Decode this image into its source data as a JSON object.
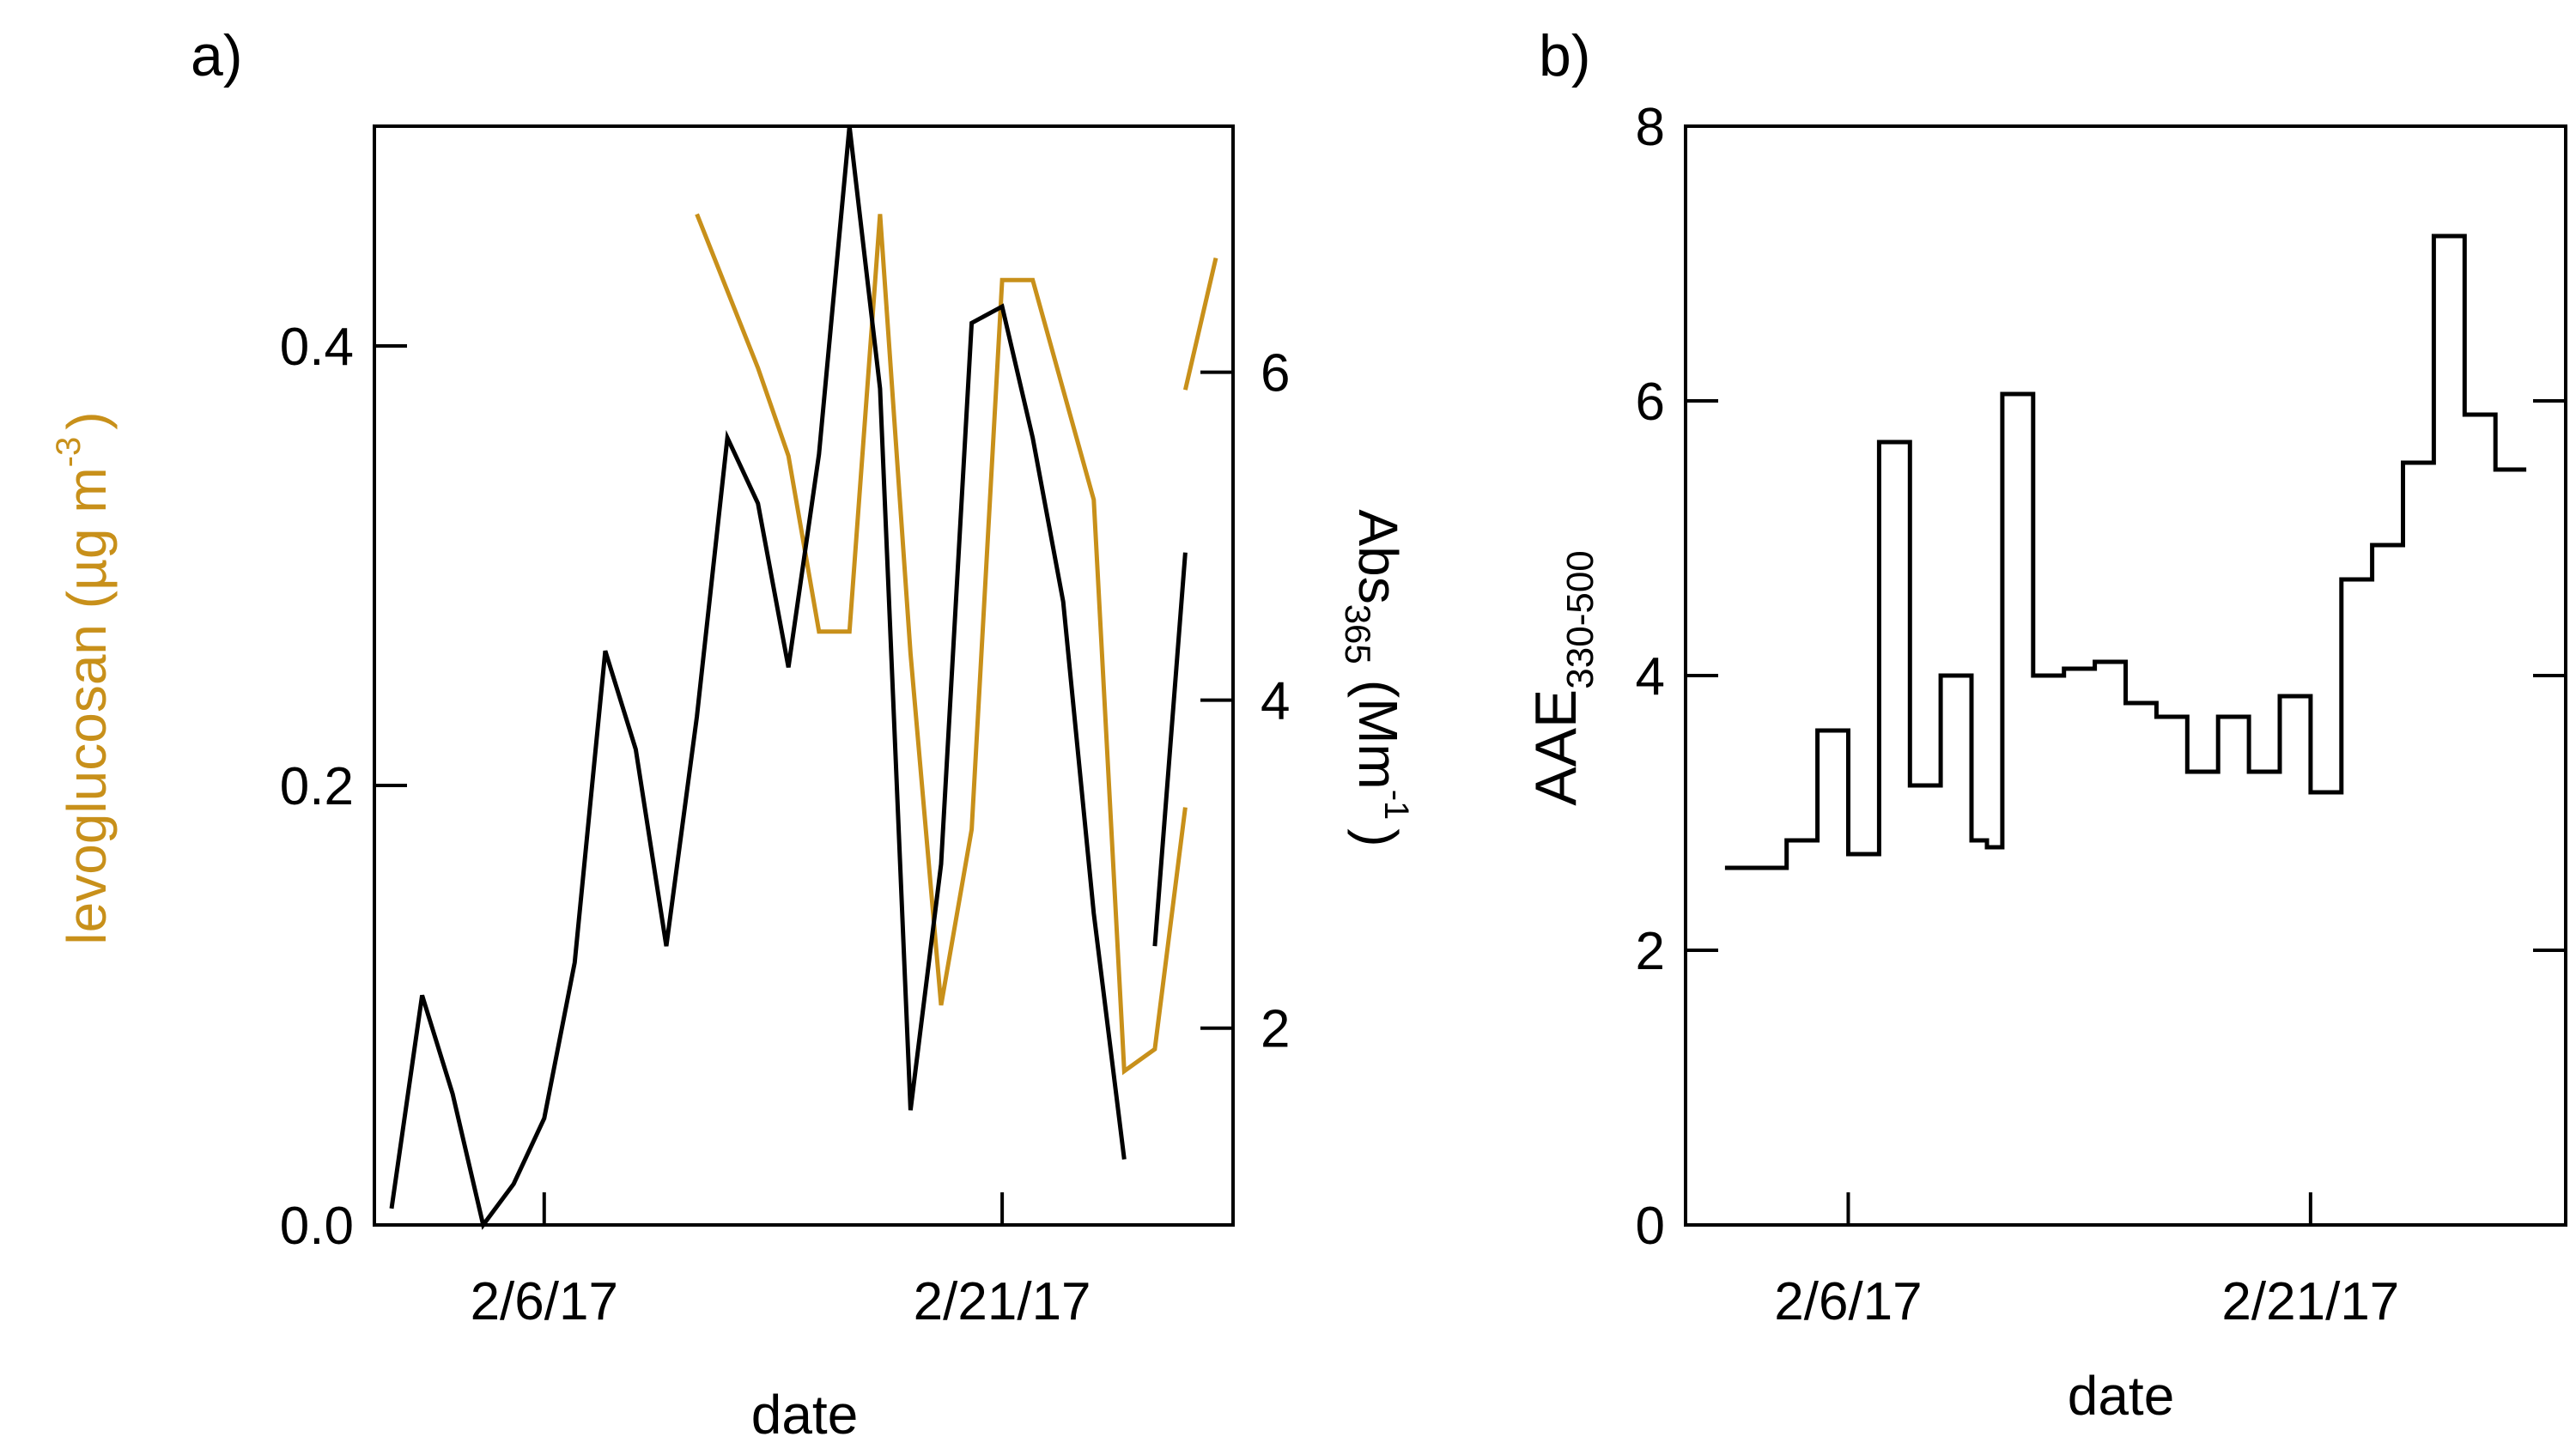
{
  "chart_data": [
    {
      "panel": "a)",
      "type": "line",
      "xlabel": "date",
      "x_tick_labels": [
        "2/6/17",
        "2/21/17"
      ],
      "x_tick_days": [
        6,
        21
      ],
      "xlim": [
        1,
        28
      ],
      "left_axis": {
        "label": "levoglucosan (µg m⁻³)",
        "label_main": "levoglucosan (µg m",
        "label_sup": "-3",
        "label_close": ")",
        "ylim": [
          0,
          0.5
        ],
        "ticks": [
          "0.0",
          "0.2",
          "0.4"
        ],
        "tick_values": [
          0,
          0.2,
          0.4
        ],
        "color": "#c8901a"
      },
      "right_axis": {
        "label": "Abs₃₆₅ (Mm⁻¹)",
        "label_main": "Abs",
        "label_sub": "365",
        "label_units": "(Mm",
        "label_sup": "-1",
        "label_close": ")",
        "ylim": [
          0.8,
          7.5
        ],
        "ticks": [
          "2",
          "4",
          "6"
        ],
        "tick_values": [
          2,
          4,
          6
        ],
        "color": "#000000"
      },
      "series": [
        {
          "name": "levoglucosan",
          "axis": "left",
          "color": "#c8901a",
          "segments": [
            {
              "x": [
                11,
                13,
                14,
                15,
                16,
                17,
                18,
                19,
                20,
                21,
                22,
                23,
                24,
                25,
                26,
                27
              ],
              "y": [
                0.46,
                0.39,
                0.35,
                0.27,
                0.27,
                0.46,
                0.26,
                0.1,
                0.18,
                0.43,
                0.43,
                0.38,
                0.33,
                0.07,
                0.08,
                0.19
              ]
            },
            {
              "x": [
                27,
                28
              ],
              "y": [
                0.38,
                0.44
              ]
            }
          ]
        },
        {
          "name": "Abs365",
          "axis": "right",
          "color": "#000000",
          "segments": [
            {
              "x": [
                1,
                2,
                3,
                4,
                5,
                6,
                7,
                8,
                9,
                10,
                11,
                12,
                13,
                14,
                15,
                16,
                17,
                18,
                19,
                20,
                21,
                22,
                23,
                24,
                25
              ],
              "y": [
                0.9,
                2.2,
                1.6,
                0.8,
                1.05,
                1.45,
                2.4,
                4.3,
                3.7,
                2.5,
                3.9,
                5.6,
                5.2,
                4.2,
                5.5,
                7.5,
                5.9,
                1.5,
                3.0,
                6.3,
                6.4,
                5.6,
                4.6,
                2.7,
                1.2
              ]
            },
            {
              "x": [
                26,
                27
              ],
              "y": [
                2.5,
                4.9
              ]
            }
          ]
        }
      ]
    },
    {
      "panel": "b)",
      "type": "line",
      "step": true,
      "xlabel": "date",
      "ylabel": "AAE₃₃₀₋₅₀₀",
      "ylabel_main": "AAE",
      "ylabel_sub": "330-500",
      "x_tick_labels": [
        "2/6/17",
        "2/21/17"
      ],
      "x_tick_days": [
        6,
        21
      ],
      "xlim": [
        1,
        29
      ],
      "ylim": [
        0,
        8
      ],
      "y_ticks": [
        "0",
        "2",
        "4",
        "6",
        "8"
      ],
      "y_tick_values": [
        0,
        2,
        4,
        6,
        8
      ],
      "series": [
        {
          "name": "AAE330-500",
          "color": "#000000",
          "edges": [
            2.0,
            4.0,
            5.0,
            6.0,
            7.0,
            8.0,
            9.0,
            10.0,
            10.5,
            11.0,
            12.0,
            13.0,
            14.0,
            15.0,
            16.0,
            17.0,
            18.0,
            19.0,
            20.0,
            21.0,
            22.0,
            23.0,
            24.0,
            25.0,
            26.0,
            27.0,
            28.0
          ],
          "values": [
            2.6,
            2.8,
            3.6,
            2.7,
            5.7,
            3.2,
            4.0,
            2.8,
            2.75,
            6.05,
            4.0,
            4.05,
            4.1,
            3.8,
            3.7,
            3.3,
            3.7,
            3.3,
            3.85,
            3.15,
            4.7,
            4.95,
            5.55,
            7.2,
            5.9,
            5.5
          ]
        }
      ]
    }
  ]
}
